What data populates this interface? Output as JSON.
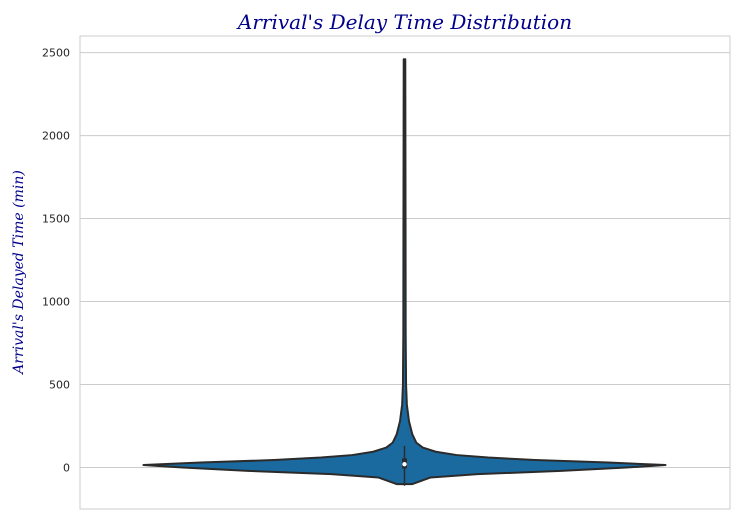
{
  "chart_data": {
    "type": "violin",
    "title": "Arrival's Delay Time Distribution",
    "xlabel": "",
    "ylabel": "Arrival's Delayed Time (min)",
    "ylim": [
      -250,
      2600
    ],
    "yticks": [
      0,
      500,
      1000,
      1500,
      2000,
      2500
    ],
    "ytick_labels": [
      "0",
      "500",
      "1000",
      "1500",
      "2000",
      "2500"
    ],
    "grid": "horizontal",
    "violin": {
      "color": "#1a6aa0",
      "min": -110,
      "max": 2460,
      "q1": -5,
      "median": 20,
      "q3": 55,
      "whisker_low": -110,
      "whisker_high": 130,
      "density_profile": [
        {
          "y": -100,
          "w": 0.03
        },
        {
          "y": -60,
          "w": 0.1
        },
        {
          "y": -40,
          "w": 0.28
        },
        {
          "y": -20,
          "w": 0.6
        },
        {
          "y": 0,
          "w": 0.85
        },
        {
          "y": 15,
          "w": 1.0
        },
        {
          "y": 30,
          "w": 0.78
        },
        {
          "y": 45,
          "w": 0.5
        },
        {
          "y": 60,
          "w": 0.32
        },
        {
          "y": 75,
          "w": 0.2
        },
        {
          "y": 95,
          "w": 0.12
        },
        {
          "y": 120,
          "w": 0.07
        },
        {
          "y": 150,
          "w": 0.045
        },
        {
          "y": 200,
          "w": 0.03
        },
        {
          "y": 280,
          "w": 0.017
        },
        {
          "y": 380,
          "w": 0.009
        },
        {
          "y": 500,
          "w": 0.006
        },
        {
          "y": 800,
          "w": 0.0045
        },
        {
          "y": 1500,
          "w": 0.004
        },
        {
          "y": 2460,
          "w": 0.003
        }
      ]
    }
  }
}
